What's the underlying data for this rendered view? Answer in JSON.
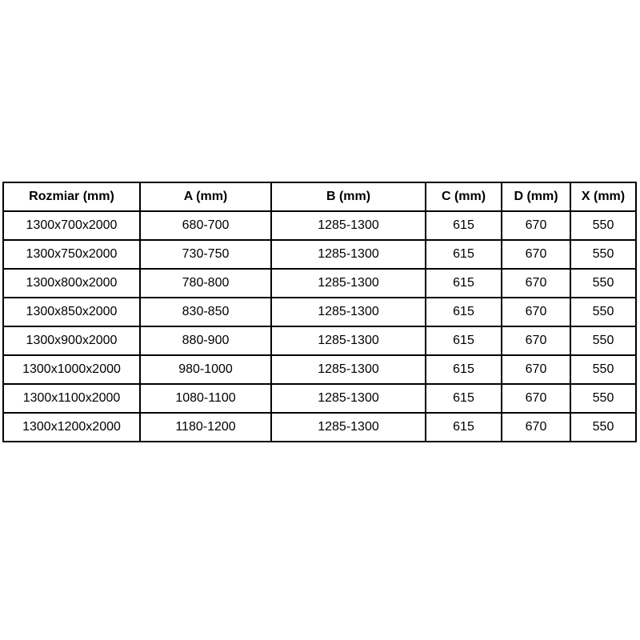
{
  "colors": {
    "border": "#000000",
    "text": "#000000",
    "background": "#ffffff"
  },
  "chart_data": {
    "type": "table",
    "title": "",
    "columns": [
      "Rozmiar (mm)",
      "A (mm)",
      "B (mm)",
      "C (mm)",
      "D (mm)",
      "X (mm)"
    ],
    "rows": [
      [
        "1300x700x2000",
        "680-700",
        "1285-1300",
        "615",
        "670",
        "550"
      ],
      [
        "1300x750x2000",
        "730-750",
        "1285-1300",
        "615",
        "670",
        "550"
      ],
      [
        "1300x800x2000",
        "780-800",
        "1285-1300",
        "615",
        "670",
        "550"
      ],
      [
        "1300x850x2000",
        "830-850",
        "1285-1300",
        "615",
        "670",
        "550"
      ],
      [
        "1300x900x2000",
        "880-900",
        "1285-1300",
        "615",
        "670",
        "550"
      ],
      [
        "1300x1000x2000",
        "980-1000",
        "1285-1300",
        "615",
        "670",
        "550"
      ],
      [
        "1300x1100x2000",
        "1080-1100",
        "1285-1300",
        "615",
        "670",
        "550"
      ],
      [
        "1300x1200x2000",
        "1180-1200",
        "1285-1300",
        "615",
        "670",
        "550"
      ]
    ]
  }
}
